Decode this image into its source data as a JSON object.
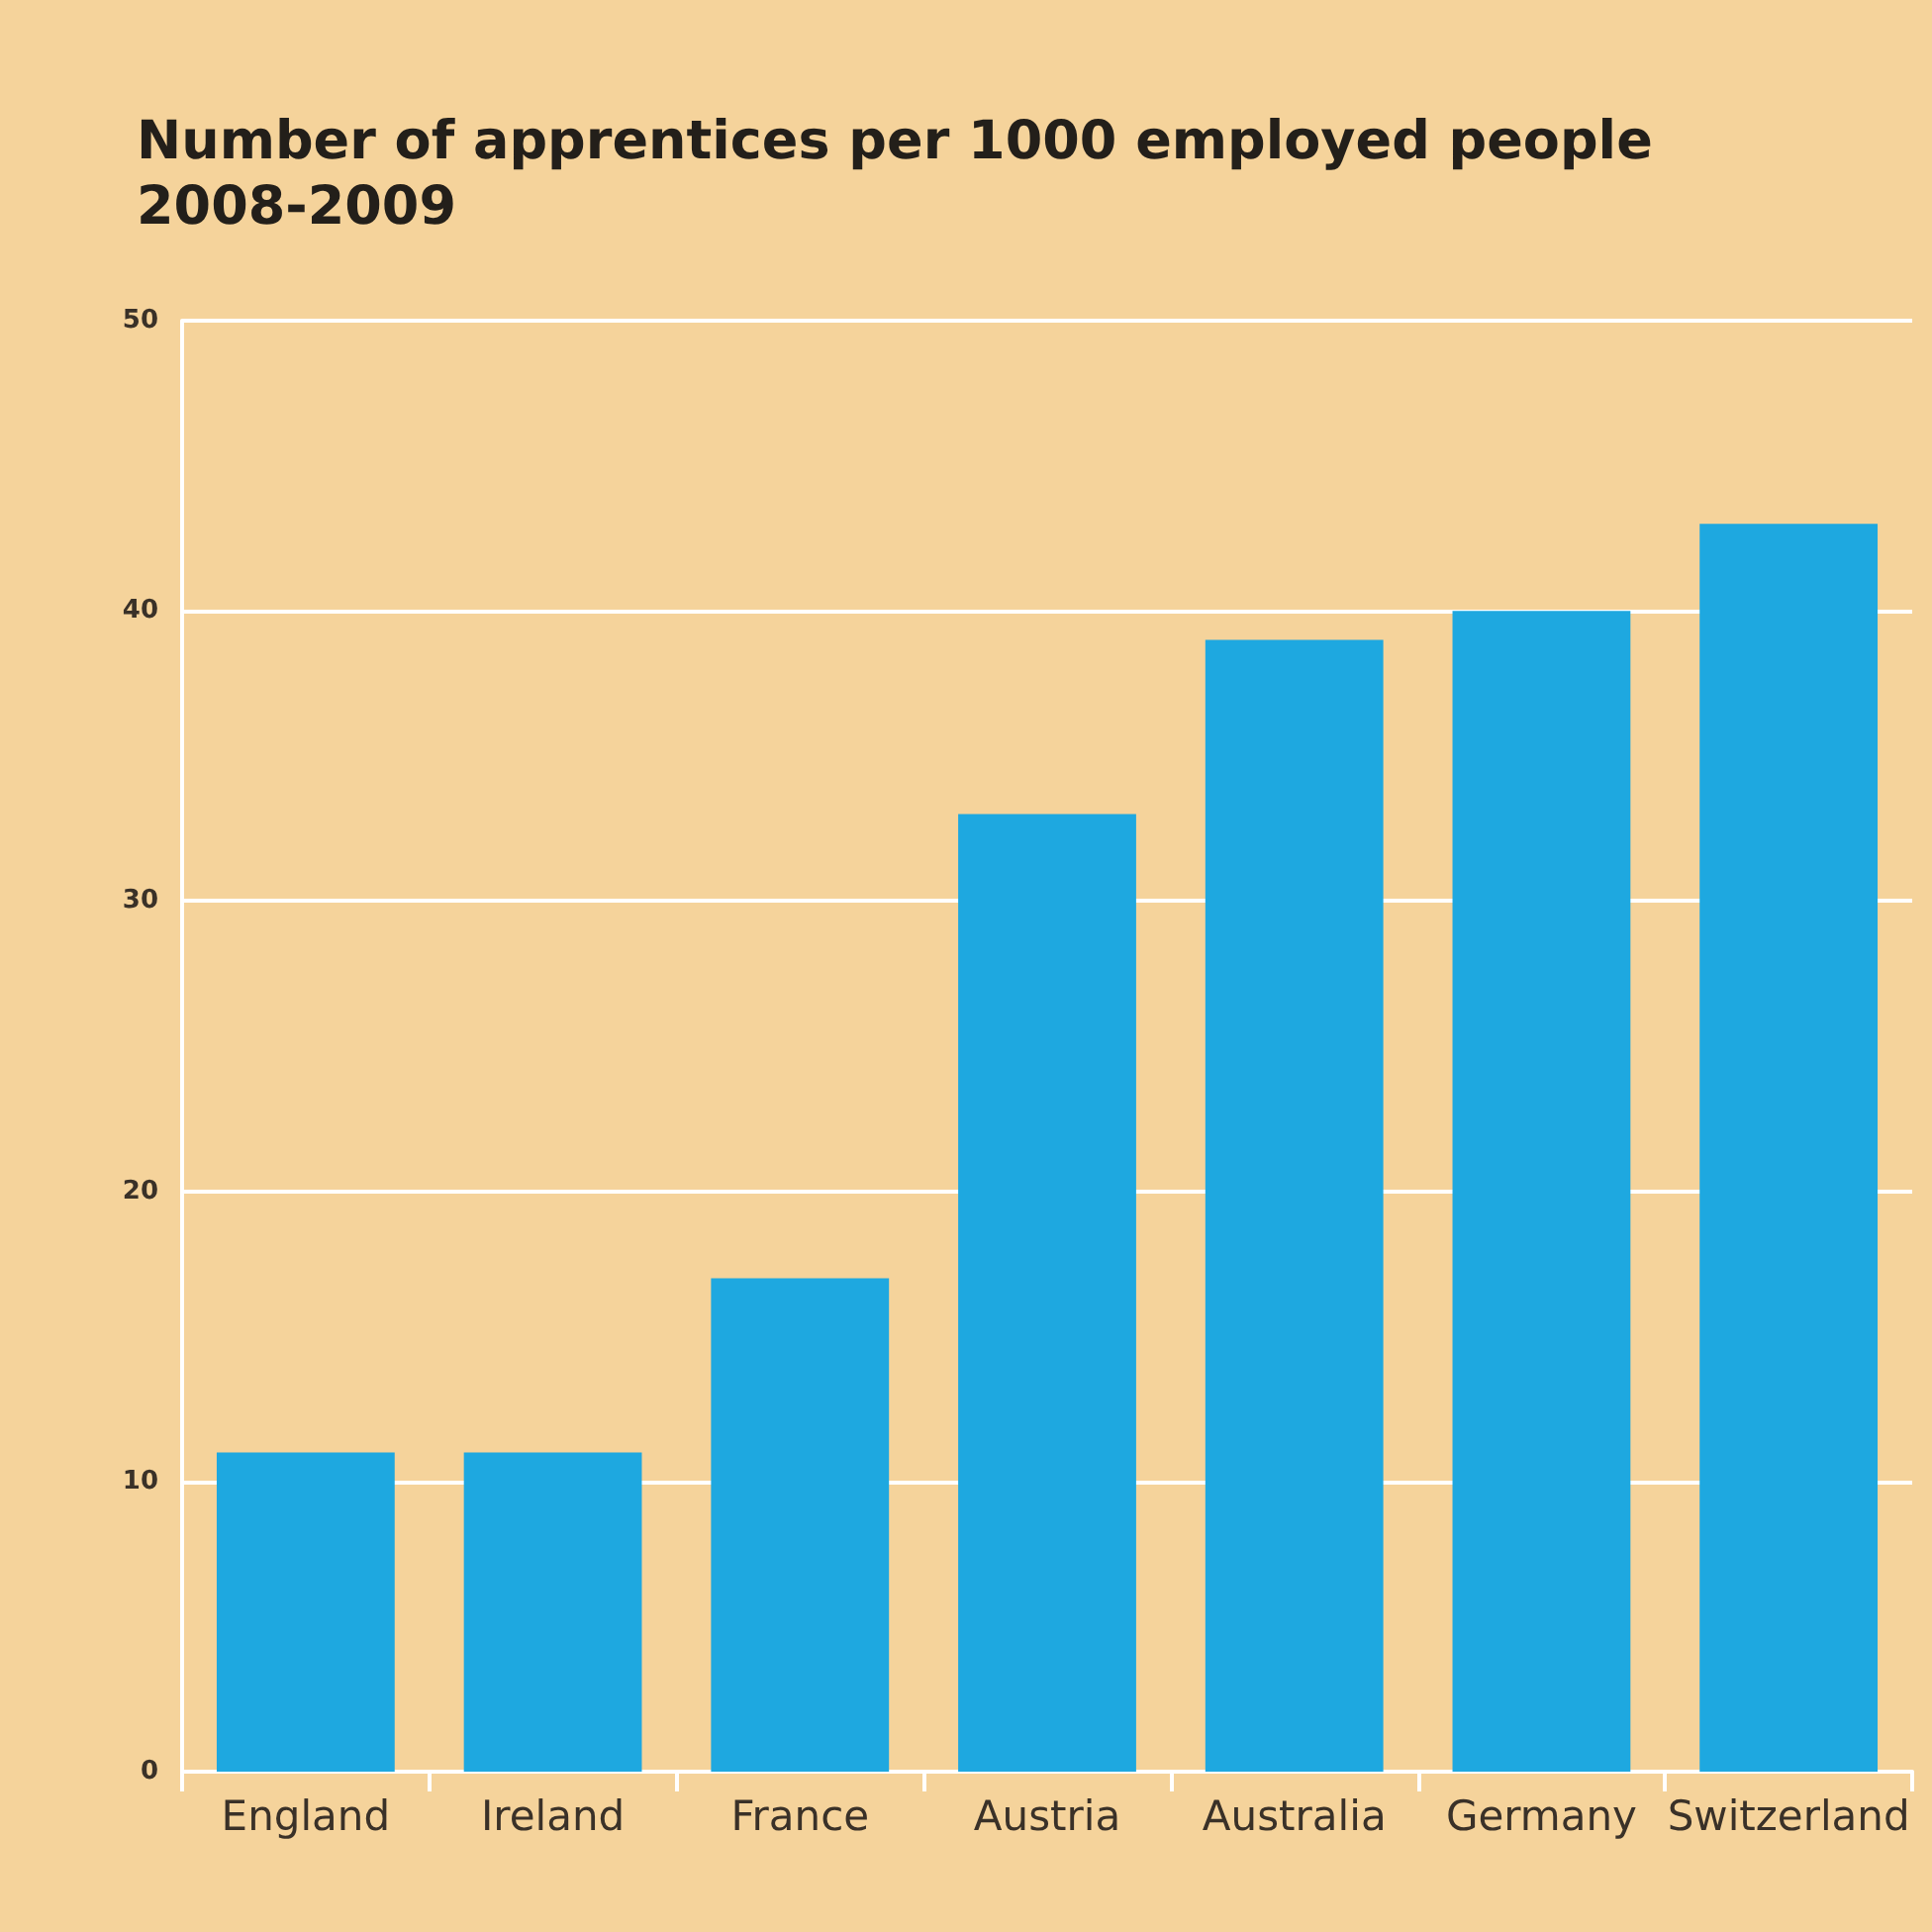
{
  "chart_data": {
    "type": "bar",
    "title": "Number of apprentices per 1000 employed people 2008-2009",
    "categories": [
      "England",
      "Ireland",
      "France",
      "Austria",
      "Australia",
      "Germany",
      "Switzerland"
    ],
    "values": [
      11,
      11,
      17,
      33,
      39,
      40,
      43
    ],
    "color": "#1ea8e0",
    "ylim": [
      0,
      50
    ],
    "yticks": [
      0,
      10,
      20,
      30,
      40,
      50
    ],
    "grid": "y"
  }
}
